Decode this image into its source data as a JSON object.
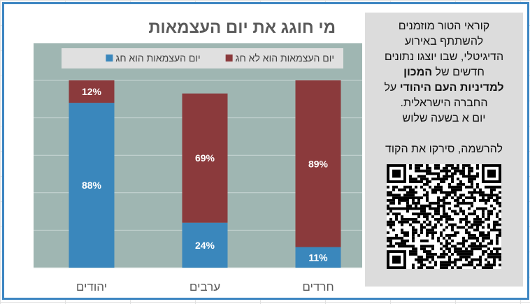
{
  "chart_data": {
    "type": "bar",
    "stacked": true,
    "title": "מי חוגג את יום העצמאות",
    "categories": [
      "יהודים",
      "ערבים",
      "חרדים"
    ],
    "series": [
      {
        "name": "יום העצמאות הוא חג",
        "color": "#3a87bc",
        "values": [
          88,
          24,
          11
        ],
        "labels": [
          "88%",
          "24%",
          "11%"
        ]
      },
      {
        "name": "יום העצמאות הוא לא חג",
        "color": "#8b3a3c",
        "values": [
          12,
          69,
          89
        ],
        "labels": [
          "12%",
          "69%",
          "89%"
        ]
      }
    ],
    "ylim": [
      0,
      100
    ],
    "grid": true,
    "legend": "top",
    "plot_bg": "#9fb6b2"
  },
  "side": {
    "lines": [
      "קוראי הטור מוזמנים",
      "להשתתף באירוע",
      "הדיגיטלי, שבו יוצגו נתונים"
    ],
    "line4_prefix": "חדשים של ",
    "line4_bold": "המכון",
    "line5_bold": "למדיניות העם היהודי",
    "line5_suffix": " על",
    "line6": "החברה הישראלית.",
    "line7": "יום א בשעה שלוש",
    "register": "להרשמה, סירקו את הקוד",
    "qr_icon": "qr-code-icon"
  }
}
